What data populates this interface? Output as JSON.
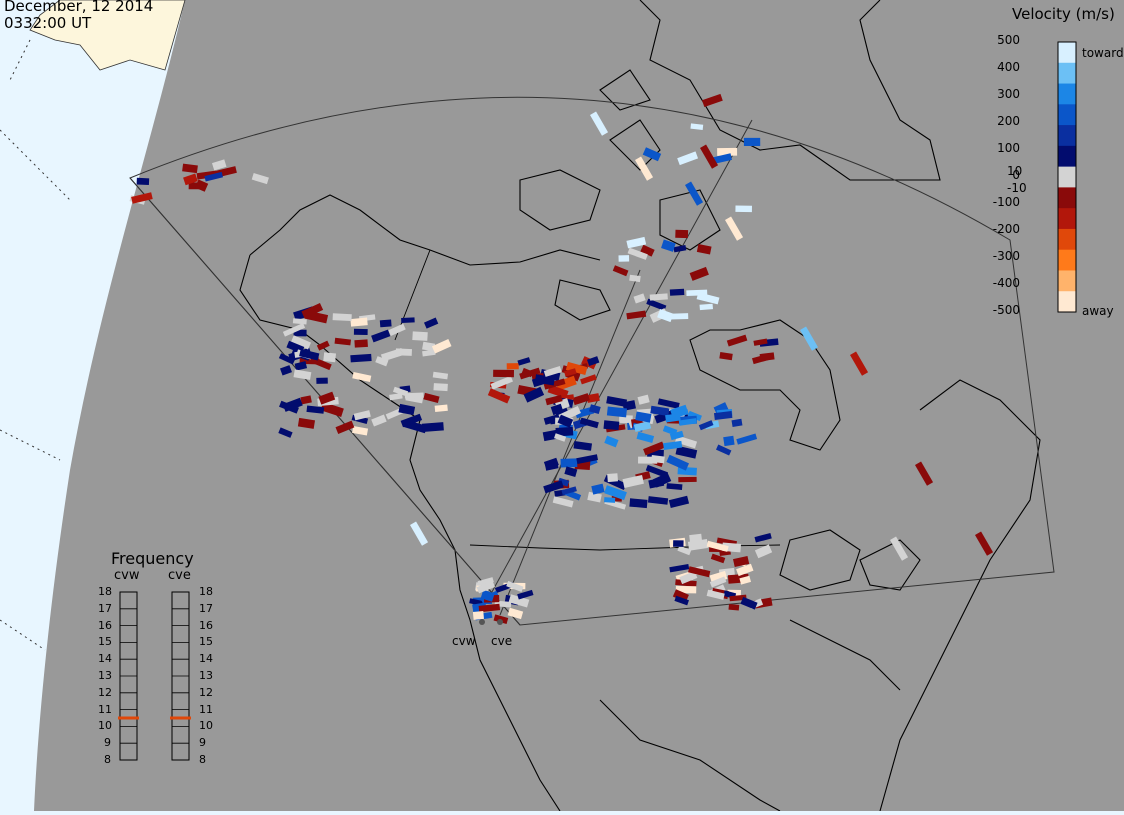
{
  "header": {
    "date": "December, 12 2014",
    "time": "0332:00 UT"
  },
  "colorbar": {
    "title": "Velocity (m/s)",
    "ticks": [
      "500",
      "400",
      "300",
      "200",
      "100",
      "10",
      "0",
      "-10",
      "-100",
      "-200",
      "-300",
      "-400",
      "-500"
    ],
    "toward_label": "toward",
    "away_label": "away",
    "colors": [
      "#ffe9d2",
      "#ffb36b",
      "#ff7a1a",
      "#e0480a",
      "#b2170b",
      "#8a0a0a",
      "#d3d3d3",
      "#020c6e",
      "#0a2fa0",
      "#0b56c9",
      "#1c86e6",
      "#6cc0f5",
      "#d8f0ff"
    ]
  },
  "frequency_panel": {
    "title": "Frequency",
    "radars": [
      "cvw",
      "cve"
    ],
    "scale": [
      "18",
      "17",
      "16",
      "15",
      "14",
      "13",
      "12",
      "11",
      "10",
      "9",
      "8"
    ],
    "current_mhz": [
      10.5,
      10.5
    ],
    "marker_color": "#e0480a"
  },
  "map": {
    "radar_sites": [
      "cvw",
      "cve"
    ],
    "land_color": "#999999",
    "background_color": "#e8f6ff",
    "groundscatter_color": "#d3d3d3"
  }
}
